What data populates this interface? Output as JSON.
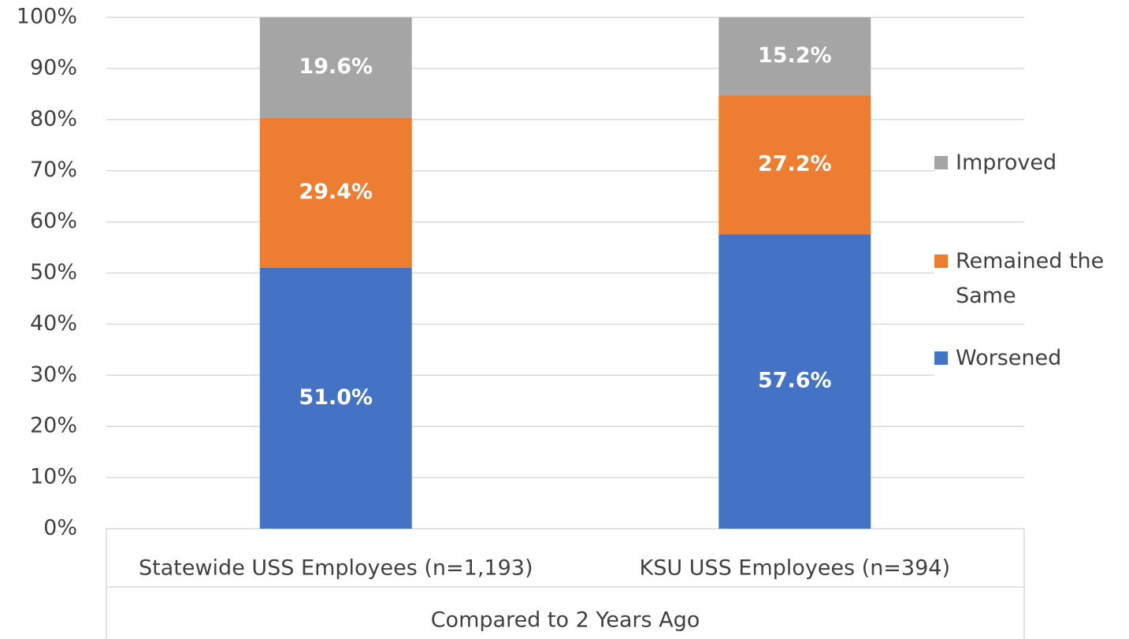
{
  "chart_data": {
    "type": "stacked_bar",
    "categories": [
      "Statewide USS Employees (n=1,193)",
      "KSU USS Employees (n=394)"
    ],
    "xlabel": "Compared to 2 Years Ago",
    "series": [
      {
        "name": "Worsened",
        "color": "#4472c4",
        "values": [
          51.0,
          57.6
        ],
        "value_labels": [
          "51.0%",
          "57.6%"
        ]
      },
      {
        "name": "Remained the Same",
        "color": "#ed7d31",
        "values": [
          29.4,
          27.2
        ],
        "value_labels": [
          "29.4%",
          "27.2%"
        ]
      },
      {
        "name": "Improved",
        "color": "#a5a5a5",
        "values": [
          19.6,
          15.2
        ],
        "value_labels": [
          "19.6%",
          "15.2%"
        ]
      }
    ],
    "ylim": [
      0,
      100
    ],
    "yticks": [
      {
        "value": 0,
        "label": "0%"
      },
      {
        "value": 10,
        "label": "10%"
      },
      {
        "value": 20,
        "label": "20%"
      },
      {
        "value": 30,
        "label": "30%"
      },
      {
        "value": 40,
        "label": "40%"
      },
      {
        "value": 50,
        "label": "50%"
      },
      {
        "value": 60,
        "label": "60%"
      },
      {
        "value": 70,
        "label": "70%"
      },
      {
        "value": 80,
        "label": "80%"
      },
      {
        "value": 90,
        "label": "90%"
      },
      {
        "value": 100,
        "label": "100%"
      }
    ],
    "grid": true,
    "legend": "right"
  }
}
